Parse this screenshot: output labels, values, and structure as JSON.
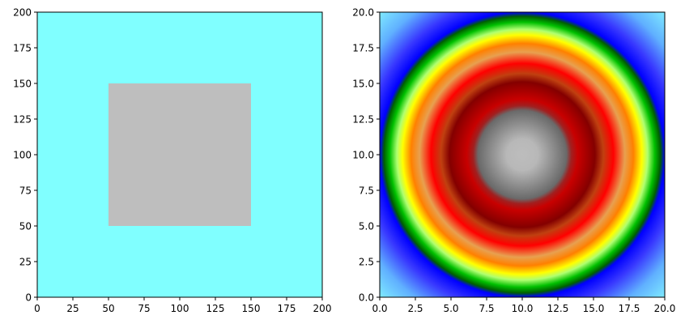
{
  "chart_data": [
    {
      "type": "heatmap",
      "title": "",
      "xlabel": "",
      "ylabel": "",
      "xlim": [
        0,
        200
      ],
      "ylim": [
        0,
        200
      ],
      "xticks": [
        "0",
        "25",
        "50",
        "75",
        "100",
        "125",
        "150",
        "175",
        "200"
      ],
      "yticks": [
        "0",
        "25",
        "50",
        "75",
        "100",
        "125",
        "150",
        "175",
        "200"
      ],
      "background_color": "#80ffff",
      "regions": [
        {
          "shape": "square",
          "x": [
            50,
            150
          ],
          "y": [
            50,
            150
          ],
          "color": "#bebebe"
        }
      ]
    },
    {
      "type": "heatmap",
      "title": "",
      "xlabel": "",
      "ylabel": "",
      "xlim": [
        0,
        20
      ],
      "ylim": [
        0,
        20
      ],
      "xticks": [
        "0.0",
        "2.5",
        "5.0",
        "7.5",
        "10.0",
        "12.5",
        "15.0",
        "17.5",
        "20.0"
      ],
      "yticks": [
        "0.0",
        "2.5",
        "5.0",
        "7.5",
        "10.0",
        "12.5",
        "15.0",
        "17.5",
        "20.0"
      ],
      "pattern": "radial",
      "center": [
        10,
        10
      ],
      "radial_color_stops": [
        {
          "r": 0.0,
          "color": "#bdbdbd"
        },
        {
          "r": 1.1,
          "color": "#b8b8b8"
        },
        {
          "r": 3.1,
          "color": "#6a6a6a"
        },
        {
          "r": 3.45,
          "color": "#a02020"
        },
        {
          "r": 3.9,
          "color": "#c80000"
        },
        {
          "r": 5.1,
          "color": "#840000"
        },
        {
          "r": 5.7,
          "color": "#c04010"
        },
        {
          "r": 6.4,
          "color": "#ff0000"
        },
        {
          "r": 7.2,
          "color": "#e8a050"
        },
        {
          "r": 7.8,
          "color": "#ff8000"
        },
        {
          "r": 8.4,
          "color": "#ffff00"
        },
        {
          "r": 8.8,
          "color": "#b0ff70"
        },
        {
          "r": 9.3,
          "color": "#00c000"
        },
        {
          "r": 9.7,
          "color": "#006000"
        },
        {
          "r": 10.0,
          "color": "#0000ff"
        },
        {
          "r": 11.0,
          "color": "#3838ff"
        },
        {
          "r": 12.5,
          "color": "#60b0ff"
        },
        {
          "r": 14.2,
          "color": "#80ecff"
        }
      ]
    }
  ]
}
